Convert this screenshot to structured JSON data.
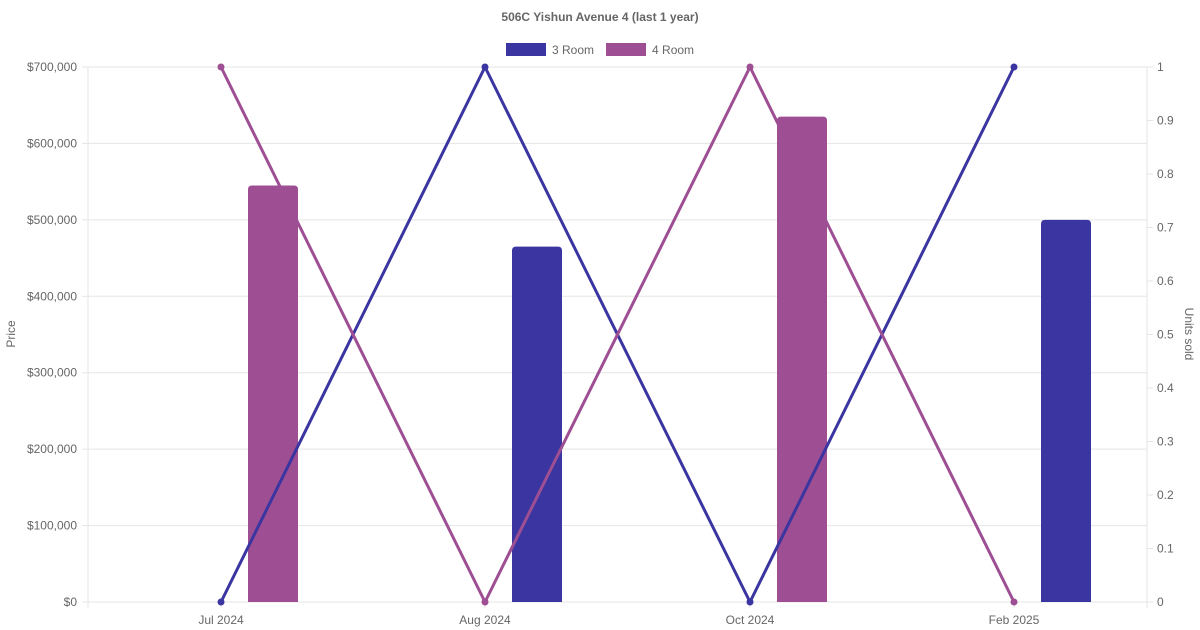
{
  "chart_data": {
    "type": "bar",
    "title": "506C Yishun Avenue 4 (last 1 year)",
    "categories": [
      "Jul 2024",
      "Aug 2024",
      "Oct 2024",
      "Feb 2025"
    ],
    "y_left": {
      "label": "Price",
      "min": 0,
      "max": 700000,
      "step": 100000,
      "ticks": [
        "$0",
        "$100,000",
        "$200,000",
        "$300,000",
        "$400,000",
        "$500,000",
        "$600,000",
        "$700,000"
      ]
    },
    "y_right": {
      "label": "Units sold",
      "min": 0,
      "max": 1,
      "step": 0.1,
      "ticks": [
        "0",
        "0.1",
        "0.2",
        "0.3",
        "0.4",
        "0.5",
        "0.6",
        "0.7",
        "0.8",
        "0.9",
        "1"
      ]
    },
    "legend": {
      "position": "top"
    },
    "grid": true,
    "series": [
      {
        "name": "3 Room",
        "color": "#3a35a0",
        "price": [
          null,
          465000,
          null,
          500000
        ],
        "units": [
          0,
          1,
          0,
          1
        ]
      },
      {
        "name": "4 Room",
        "color": "#9e4f93",
        "price": [
          545000,
          null,
          635000,
          null
        ],
        "units": [
          1,
          0,
          1,
          0
        ]
      }
    ]
  }
}
